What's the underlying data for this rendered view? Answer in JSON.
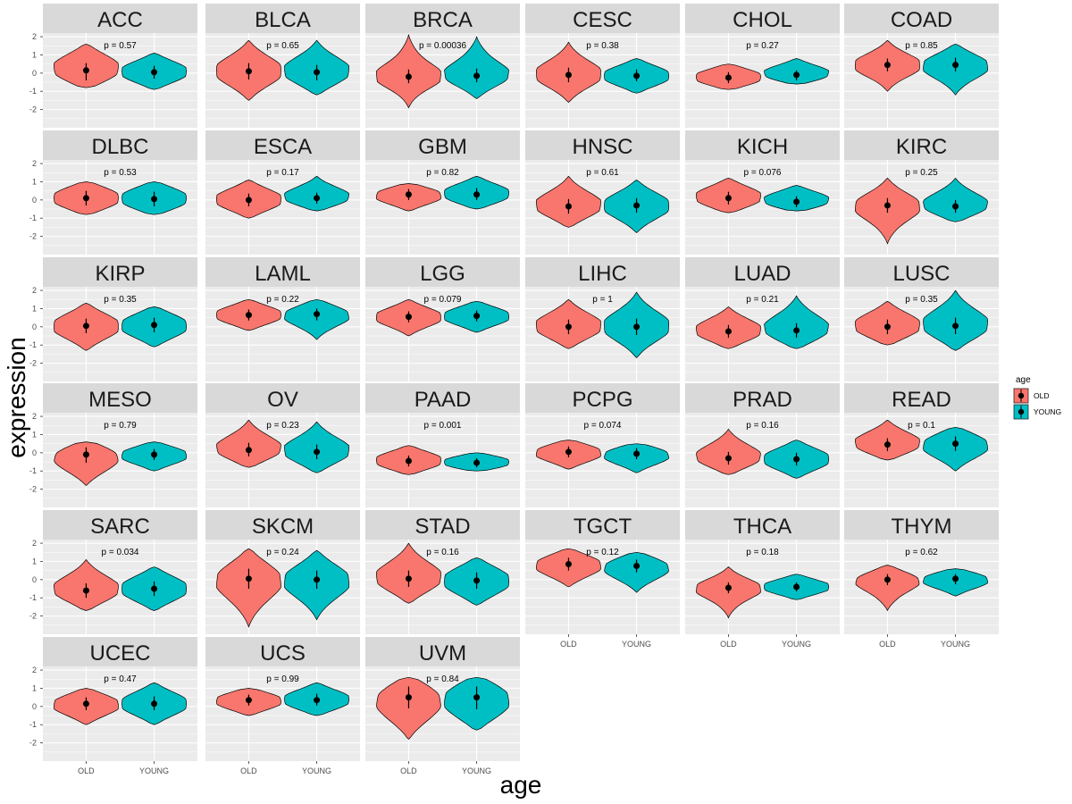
{
  "chart_data": {
    "type": "violin",
    "title": "",
    "xlabel": "age",
    "ylabel": "expression",
    "ylim": [
      -3.0,
      2.2
    ],
    "yticks": [
      -2,
      -1,
      0,
      1,
      2
    ],
    "categories": [
      "OLD",
      "YOUNG"
    ],
    "legend": {
      "title": "age",
      "position": "right",
      "entries": [
        {
          "label": "OLD",
          "color": "#F8766D"
        },
        {
          "label": "YOUNG",
          "color": "#00BFC4"
        }
      ]
    },
    "colors": {
      "OLD": "#F8766D",
      "YOUNG": "#00BFC4",
      "panel": "#EBEBEB",
      "strip": "#D9D9D9",
      "grid": "#FFFFFF"
    },
    "panels": [
      {
        "name": "ACC",
        "p": "p = 0.57",
        "groups": [
          {
            "group": "OLD",
            "min": -0.8,
            "max": 1.6,
            "mean": 0.15,
            "lo": -0.4,
            "hi": 0.55
          },
          {
            "group": "YOUNG",
            "min": -0.9,
            "max": 1.1,
            "mean": 0.05,
            "lo": -0.3,
            "hi": 0.4
          }
        ]
      },
      {
        "name": "BLCA",
        "p": "p = 0.65",
        "groups": [
          {
            "group": "OLD",
            "min": -1.5,
            "max": 1.8,
            "mean": 0.1,
            "lo": -0.35,
            "hi": 0.55
          },
          {
            "group": "YOUNG",
            "min": -1.2,
            "max": 1.8,
            "mean": 0.05,
            "lo": -0.4,
            "hi": 0.45
          }
        ]
      },
      {
        "name": "BRCA",
        "p": "p = 0.00036",
        "groups": [
          {
            "group": "OLD",
            "min": -1.9,
            "max": 2.1,
            "mean": -0.2,
            "lo": -0.55,
            "hi": 0.2
          },
          {
            "group": "YOUNG",
            "min": -1.4,
            "max": 2.0,
            "mean": -0.15,
            "lo": -0.5,
            "hi": 0.25
          }
        ]
      },
      {
        "name": "CESC",
        "p": "p = 0.38",
        "groups": [
          {
            "group": "OLD",
            "min": -1.6,
            "max": 1.7,
            "mean": -0.1,
            "lo": -0.5,
            "hi": 0.3
          },
          {
            "group": "YOUNG",
            "min": -1.1,
            "max": 0.8,
            "mean": -0.15,
            "lo": -0.45,
            "hi": 0.2
          }
        ]
      },
      {
        "name": "CHOL",
        "p": "p = 0.27",
        "groups": [
          {
            "group": "OLD",
            "min": -0.9,
            "max": 0.5,
            "mean": -0.25,
            "lo": -0.55,
            "hi": 0.05
          },
          {
            "group": "YOUNG",
            "min": -0.6,
            "max": 0.8,
            "mean": -0.1,
            "lo": -0.4,
            "hi": 0.15
          }
        ]
      },
      {
        "name": "COAD",
        "p": "p = 0.85",
        "groups": [
          {
            "group": "OLD",
            "min": -1.0,
            "max": 1.8,
            "mean": 0.45,
            "lo": 0.1,
            "hi": 0.8
          },
          {
            "group": "YOUNG",
            "min": -1.2,
            "max": 1.6,
            "mean": 0.45,
            "lo": 0.1,
            "hi": 0.85
          }
        ]
      },
      {
        "name": "DLBC",
        "p": "p = 0.53",
        "groups": [
          {
            "group": "OLD",
            "min": -0.8,
            "max": 1.0,
            "mean": 0.1,
            "lo": -0.3,
            "hi": 0.5
          },
          {
            "group": "YOUNG",
            "min": -0.8,
            "max": 1.0,
            "mean": 0.05,
            "lo": -0.35,
            "hi": 0.45
          }
        ]
      },
      {
        "name": "ESCA",
        "p": "p = 0.17",
        "groups": [
          {
            "group": "OLD",
            "min": -1.0,
            "max": 1.1,
            "mean": 0.0,
            "lo": -0.35,
            "hi": 0.35
          },
          {
            "group": "YOUNG",
            "min": -0.6,
            "max": 1.3,
            "mean": 0.1,
            "lo": -0.2,
            "hi": 0.4
          }
        ]
      },
      {
        "name": "GBM",
        "p": "p = 0.82",
        "groups": [
          {
            "group": "OLD",
            "min": -0.6,
            "max": 0.9,
            "mean": 0.3,
            "lo": 0.0,
            "hi": 0.6
          },
          {
            "group": "YOUNG",
            "min": -0.5,
            "max": 1.3,
            "mean": 0.3,
            "lo": 0.0,
            "hi": 0.65
          }
        ]
      },
      {
        "name": "HNSC",
        "p": "p = 0.61",
        "groups": [
          {
            "group": "OLD",
            "min": -1.5,
            "max": 1.3,
            "mean": -0.35,
            "lo": -0.75,
            "hi": 0.05
          },
          {
            "group": "YOUNG",
            "min": -1.8,
            "max": 1.1,
            "mean": -0.3,
            "lo": -0.7,
            "hi": 0.1
          }
        ]
      },
      {
        "name": "KICH",
        "p": "p = 0.076",
        "groups": [
          {
            "group": "OLD",
            "min": -0.7,
            "max": 1.2,
            "mean": 0.1,
            "lo": -0.25,
            "hi": 0.45
          },
          {
            "group": "YOUNG",
            "min": -0.6,
            "max": 0.8,
            "mean": -0.1,
            "lo": -0.4,
            "hi": 0.2
          }
        ]
      },
      {
        "name": "KIRC",
        "p": "p = 0.25",
        "groups": [
          {
            "group": "OLD",
            "min": -2.4,
            "max": 1.2,
            "mean": -0.3,
            "lo": -0.7,
            "hi": 0.1
          },
          {
            "group": "YOUNG",
            "min": -1.2,
            "max": 1.2,
            "mean": -0.35,
            "lo": -0.7,
            "hi": 0.0
          }
        ]
      },
      {
        "name": "KIRP",
        "p": "p = 0.35",
        "groups": [
          {
            "group": "OLD",
            "min": -1.3,
            "max": 1.3,
            "mean": 0.05,
            "lo": -0.35,
            "hi": 0.45
          },
          {
            "group": "YOUNG",
            "min": -1.1,
            "max": 1.1,
            "mean": 0.1,
            "lo": -0.3,
            "hi": 0.5
          }
        ]
      },
      {
        "name": "LAML",
        "p": "p = 0.22",
        "groups": [
          {
            "group": "OLD",
            "min": -0.2,
            "max": 1.5,
            "mean": 0.65,
            "lo": 0.35,
            "hi": 0.95
          },
          {
            "group": "YOUNG",
            "min": -0.7,
            "max": 1.5,
            "mean": 0.7,
            "lo": 0.35,
            "hi": 1.0
          }
        ]
      },
      {
        "name": "LGG",
        "p": "p = 0.079",
        "groups": [
          {
            "group": "OLD",
            "min": -0.5,
            "max": 1.5,
            "mean": 0.55,
            "lo": 0.25,
            "hi": 0.85
          },
          {
            "group": "YOUNG",
            "min": -0.3,
            "max": 1.4,
            "mean": 0.6,
            "lo": 0.3,
            "hi": 0.9
          }
        ]
      },
      {
        "name": "LIHC",
        "p": "p = 1",
        "groups": [
          {
            "group": "OLD",
            "min": -1.2,
            "max": 1.5,
            "mean": 0.0,
            "lo": -0.4,
            "hi": 0.4
          },
          {
            "group": "YOUNG",
            "min": -1.7,
            "max": 1.9,
            "mean": 0.0,
            "lo": -0.45,
            "hi": 0.45
          }
        ]
      },
      {
        "name": "LUAD",
        "p": "p = 0.21",
        "groups": [
          {
            "group": "OLD",
            "min": -1.2,
            "max": 1.1,
            "mean": -0.25,
            "lo": -0.6,
            "hi": 0.1
          },
          {
            "group": "YOUNG",
            "min": -1.2,
            "max": 1.7,
            "mean": -0.2,
            "lo": -0.6,
            "hi": 0.2
          }
        ]
      },
      {
        "name": "LUSC",
        "p": "p = 0.35",
        "groups": [
          {
            "group": "OLD",
            "min": -1.0,
            "max": 1.4,
            "mean": 0.0,
            "lo": -0.4,
            "hi": 0.4
          },
          {
            "group": "YOUNG",
            "min": -1.3,
            "max": 2.0,
            "mean": 0.05,
            "lo": -0.4,
            "hi": 0.5
          }
        ]
      },
      {
        "name": "MESO",
        "p": "p = 0.79",
        "groups": [
          {
            "group": "OLD",
            "min": -1.8,
            "max": 0.6,
            "mean": -0.1,
            "lo": -0.55,
            "hi": 0.3
          },
          {
            "group": "YOUNG",
            "min": -1.0,
            "max": 0.6,
            "mean": -0.1,
            "lo": -0.4,
            "hi": 0.2
          }
        ]
      },
      {
        "name": "OV",
        "p": "p = 0.23",
        "groups": [
          {
            "group": "OLD",
            "min": -0.8,
            "max": 1.8,
            "mean": 0.15,
            "lo": -0.2,
            "hi": 0.55
          },
          {
            "group": "YOUNG",
            "min": -1.1,
            "max": 1.7,
            "mean": 0.05,
            "lo": -0.35,
            "hi": 0.45
          }
        ]
      },
      {
        "name": "PAAD",
        "p": "p = 0.001",
        "groups": [
          {
            "group": "OLD",
            "min": -1.2,
            "max": 0.4,
            "mean": -0.45,
            "lo": -0.75,
            "hi": -0.15
          },
          {
            "group": "YOUNG",
            "min": -1.0,
            "max": 0.0,
            "mean": -0.55,
            "lo": -0.8,
            "hi": -0.3
          }
        ]
      },
      {
        "name": "PCPG",
        "p": "p = 0.074",
        "groups": [
          {
            "group": "OLD",
            "min": -0.9,
            "max": 0.7,
            "mean": 0.05,
            "lo": -0.25,
            "hi": 0.35
          },
          {
            "group": "YOUNG",
            "min": -1.1,
            "max": 0.5,
            "mean": -0.05,
            "lo": -0.35,
            "hi": 0.25
          }
        ]
      },
      {
        "name": "PRAD",
        "p": "p = 0.16",
        "groups": [
          {
            "group": "OLD",
            "min": -1.2,
            "max": 1.3,
            "mean": -0.3,
            "lo": -0.65,
            "hi": 0.05
          },
          {
            "group": "YOUNG",
            "min": -1.4,
            "max": 0.7,
            "mean": -0.35,
            "lo": -0.7,
            "hi": 0.0
          }
        ]
      },
      {
        "name": "READ",
        "p": "p = 0.1",
        "groups": [
          {
            "group": "OLD",
            "min": -0.4,
            "max": 1.8,
            "mean": 0.45,
            "lo": 0.1,
            "hi": 0.8
          },
          {
            "group": "YOUNG",
            "min": -1.0,
            "max": 1.4,
            "mean": 0.5,
            "lo": 0.1,
            "hi": 0.9
          }
        ]
      },
      {
        "name": "SARC",
        "p": "p = 0.034",
        "groups": [
          {
            "group": "OLD",
            "min": -1.7,
            "max": 1.1,
            "mean": -0.6,
            "lo": -1.0,
            "hi": -0.2
          },
          {
            "group": "YOUNG",
            "min": -1.7,
            "max": 0.7,
            "mean": -0.5,
            "lo": -0.9,
            "hi": -0.1
          }
        ]
      },
      {
        "name": "SKCM",
        "p": "p = 0.24",
        "groups": [
          {
            "group": "OLD",
            "min": -2.6,
            "max": 1.7,
            "mean": 0.05,
            "lo": -0.5,
            "hi": 0.6
          },
          {
            "group": "YOUNG",
            "min": -2.2,
            "max": 1.6,
            "mean": 0.0,
            "lo": -0.5,
            "hi": 0.5
          }
        ]
      },
      {
        "name": "STAD",
        "p": "p = 0.16",
        "groups": [
          {
            "group": "OLD",
            "min": -1.3,
            "max": 2.0,
            "mean": 0.05,
            "lo": -0.4,
            "hi": 0.5
          },
          {
            "group": "YOUNG",
            "min": -1.4,
            "max": 1.2,
            "mean": -0.05,
            "lo": -0.5,
            "hi": 0.4
          }
        ]
      },
      {
        "name": "TGCT",
        "p": "p = 0.12",
        "groups": [
          {
            "group": "OLD",
            "min": -0.4,
            "max": 1.7,
            "mean": 0.85,
            "lo": 0.5,
            "hi": 1.2
          },
          {
            "group": "YOUNG",
            "min": -0.7,
            "max": 1.5,
            "mean": 0.75,
            "lo": 0.4,
            "hi": 1.1
          }
        ]
      },
      {
        "name": "THCA",
        "p": "p = 0.18",
        "groups": [
          {
            "group": "OLD",
            "min": -2.1,
            "max": 0.7,
            "mean": -0.45,
            "lo": -0.75,
            "hi": -0.15
          },
          {
            "group": "YOUNG",
            "min": -1.1,
            "max": 0.3,
            "mean": -0.4,
            "lo": -0.65,
            "hi": -0.15
          }
        ]
      },
      {
        "name": "THYM",
        "p": "p = 0.62",
        "groups": [
          {
            "group": "OLD",
            "min": -1.7,
            "max": 0.8,
            "mean": 0.0,
            "lo": -0.3,
            "hi": 0.3
          },
          {
            "group": "YOUNG",
            "min": -0.9,
            "max": 0.6,
            "mean": 0.05,
            "lo": -0.25,
            "hi": 0.3
          }
        ]
      },
      {
        "name": "UCEC",
        "p": "p = 0.47",
        "groups": [
          {
            "group": "OLD",
            "min": -1.0,
            "max": 1.0,
            "mean": 0.15,
            "lo": -0.2,
            "hi": 0.5
          },
          {
            "group": "YOUNG",
            "min": -1.0,
            "max": 1.3,
            "mean": 0.15,
            "lo": -0.2,
            "hi": 0.55
          }
        ]
      },
      {
        "name": "UCS",
        "p": "p = 0.99",
        "groups": [
          {
            "group": "OLD",
            "min": -0.5,
            "max": 1.0,
            "mean": 0.35,
            "lo": 0.05,
            "hi": 0.65
          },
          {
            "group": "YOUNG",
            "min": -0.5,
            "max": 1.3,
            "mean": 0.35,
            "lo": 0.05,
            "hi": 0.7
          }
        ]
      },
      {
        "name": "UVM",
        "p": "p = 0.84",
        "groups": [
          {
            "group": "OLD",
            "min": -1.8,
            "max": 1.6,
            "mean": 0.5,
            "lo": -0.1,
            "hi": 1.1
          },
          {
            "group": "YOUNG",
            "min": -1.3,
            "max": 1.6,
            "mean": 0.5,
            "lo": -0.15,
            "hi": 1.1
          }
        ]
      }
    ]
  }
}
